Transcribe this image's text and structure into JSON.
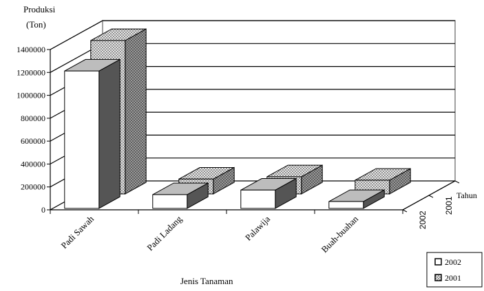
{
  "chart_data": {
    "type": "bar",
    "subtype": "3d-clustered-depth",
    "ylabel_line1": "Produksi",
    "ylabel_line2": "(Ton)",
    "xlabel": "Jenis Tanaman",
    "depth_axis_label": "Tahun",
    "categories": [
      "Padi Sawah",
      "Padi Ladang",
      "Palawija",
      "Buah-buahan"
    ],
    "yticks": [
      "0",
      "200000",
      "400000",
      "600000",
      "800000",
      "1000000",
      "1200000",
      "1400000"
    ],
    "ylim": [
      0,
      1400000
    ],
    "series": [
      {
        "name": "2002",
        "values": [
          1200000,
          120000,
          160000,
          60000
        ]
      },
      {
        "name": "2001",
        "values": [
          1340000,
          130000,
          150000,
          120000
        ]
      }
    ],
    "legend_position": "bottom-right",
    "grid": true
  },
  "colors": {
    "s2002_front": "#ffffff",
    "s2002_side": "#555555",
    "s2002_top": "#bdbdbd",
    "s2001_front": "#eeeeee",
    "s2001_side": "#8a8a8a",
    "s2001_top": "#cfcfcf"
  }
}
